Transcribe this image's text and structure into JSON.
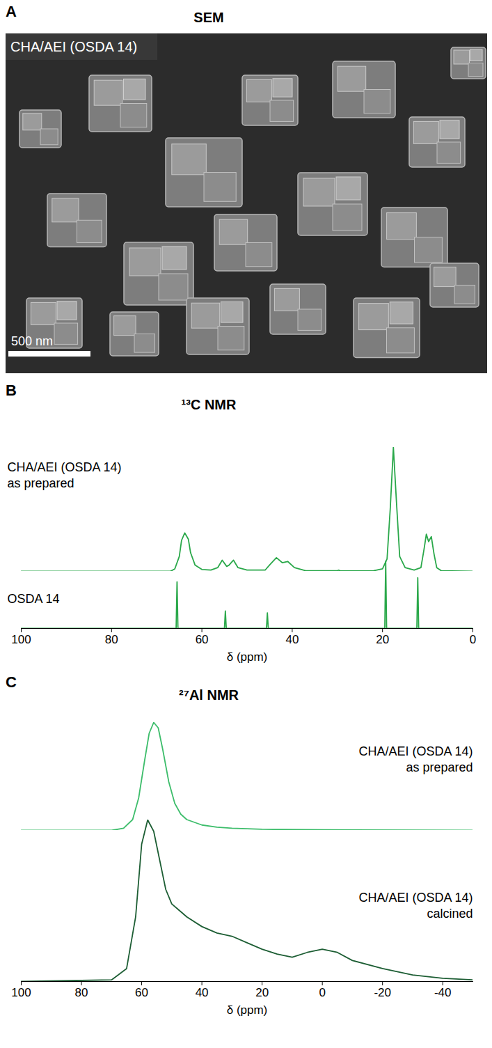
{
  "chart_data": [
    {
      "type": "image",
      "panel_label": "A",
      "title": "SEM",
      "label": "CHA/AEI (OSDA 14)",
      "scale_bar": "500 nm"
    },
    {
      "type": "line",
      "panel_label": "B",
      "title": "¹³C NMR",
      "x_label": "δ (ppm)",
      "xlim": [
        100,
        0
      ],
      "xticks": [
        100,
        80,
        60,
        40,
        20,
        0
      ],
      "ylim": [
        0,
        100
      ],
      "tick_labels": "x",
      "series": [
        {
          "name": "CHA/AEI (OSDA 14)",
          "note": "as prepared",
          "color": "#2aa84a",
          "x": [
            100,
            67,
            66,
            65,
            64.5,
            63.8,
            63,
            62.5,
            61.5,
            60,
            58,
            56.5,
            55.5,
            54.5,
            54,
            53,
            52,
            50,
            46,
            44.8,
            43.5,
            42.2,
            41,
            39.5,
            37,
            30,
            29.7,
            29.3,
            22,
            20,
            19,
            18.3,
            17.6,
            16.9,
            16.2,
            15,
            13,
            11.5,
            10.8,
            10.3,
            9.8,
            9.2,
            8.6,
            8,
            7,
            0
          ],
          "values": [
            0,
            0,
            2,
            12,
            25,
            31,
            26,
            15,
            5,
            1.5,
            1,
            3,
            9,
            4,
            5,
            9,
            3,
            1,
            1,
            6,
            11,
            7,
            8,
            3,
            0.5,
            0.5,
            1,
            0.3,
            0.5,
            2,
            10,
            50,
            100,
            55,
            12,
            3,
            1,
            3,
            18,
            30,
            24,
            28,
            14,
            3,
            0.5,
            0
          ]
        },
        {
          "name": "OSDA 14",
          "color": "#2aa84a",
          "x": [
            100,
            65.7,
            65.5,
            65.3,
            55,
            54.8,
            54.6,
            45.7,
            45.5,
            45.3,
            19.5,
            19.3,
            19.1,
            12.4,
            12.2,
            12,
            0
          ],
          "values": [
            0,
            0,
            69,
            0,
            0,
            26,
            0,
            0,
            23,
            0,
            0,
            100,
            0,
            0,
            75,
            0,
            0
          ]
        }
      ]
    },
    {
      "type": "line",
      "panel_label": "C",
      "title": "²⁷Al NMR",
      "x_label": "δ (ppm)",
      "xlim": [
        100,
        -50
      ],
      "xticks": [
        100,
        80,
        60,
        40,
        20,
        0,
        -20,
        -40
      ],
      "ylim": [
        0,
        100
      ],
      "tick_labels": "x",
      "series": [
        {
          "name": "CHA/AEI (OSDA 14)",
          "note": "as prepared",
          "color": "#3dbd6b",
          "x": [
            100,
            70,
            66,
            63,
            61,
            59,
            57.5,
            56,
            54.5,
            53,
            51,
            49,
            47,
            45,
            40,
            35,
            30,
            20,
            0,
            -50
          ],
          "values": [
            0,
            0,
            2,
            10,
            30,
            65,
            90,
            100,
            95,
            75,
            45,
            25,
            15,
            10,
            5,
            3,
            2,
            1,
            0.5,
            0
          ]
        },
        {
          "name": "CHA/AEI (OSDA 14)",
          "note": "calcined",
          "color": "#1d5e34",
          "x": [
            100,
            70,
            65,
            62,
            60,
            58,
            56,
            54,
            52,
            50,
            45,
            40,
            35,
            30,
            25,
            20,
            15,
            10,
            5,
            0,
            -5,
            -10,
            -20,
            -30,
            -40,
            -50
          ],
          "values": [
            0,
            1,
            8,
            40,
            85,
            100,
            93,
            75,
            57,
            48,
            40,
            34,
            30,
            28,
            24,
            20,
            17,
            15,
            18,
            20,
            18,
            13,
            8,
            4,
            2,
            1
          ]
        }
      ]
    }
  ]
}
